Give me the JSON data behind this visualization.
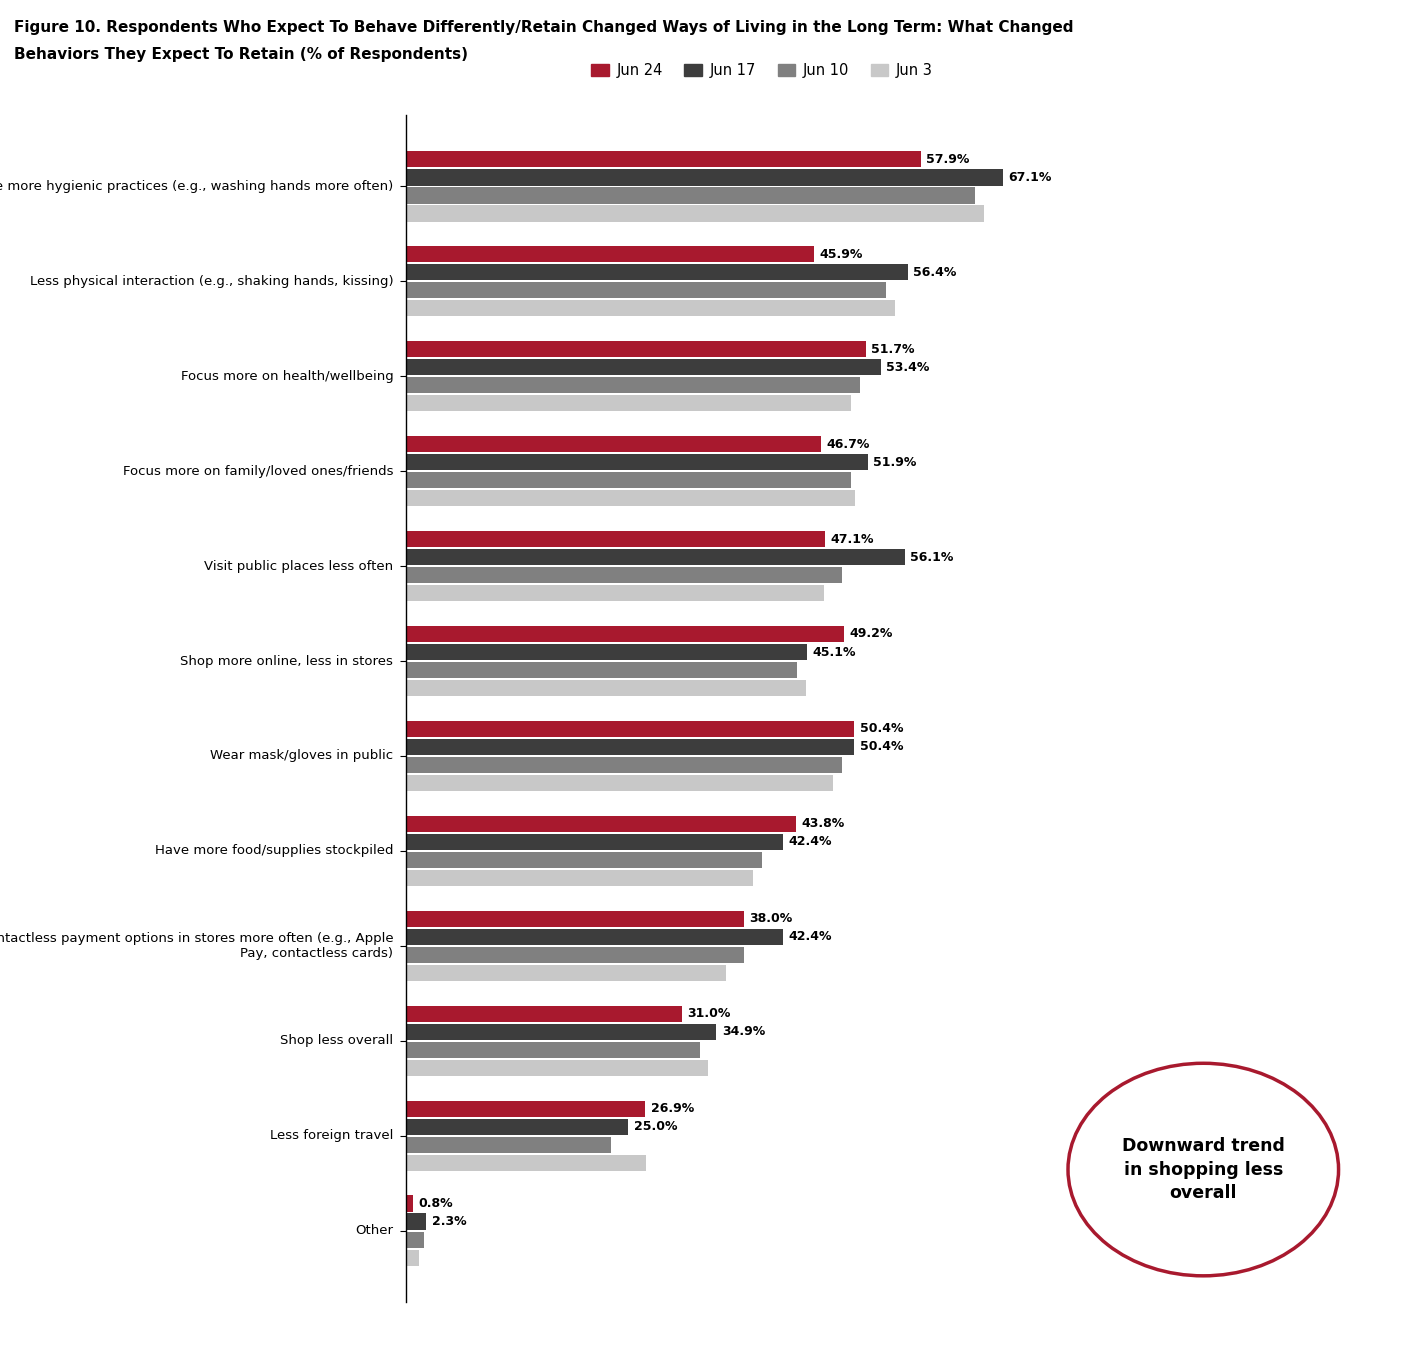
{
  "title_line1": "Figure 10. Respondents Who Expect To Behave Differently/Retain Changed Ways of Living in the Long Term: What Changed",
  "title_line2": "Behaviors They Expect To Retain (% of Respondents)",
  "categories": [
    "Have more hygienic practices (e.g., washing hands more often)",
    "Less physical interaction (e.g., shaking hands, kissing)",
    "Focus more on health/wellbeing",
    "Focus more on family/loved ones/friends",
    "Visit public places less often",
    "Shop more online, less in stores",
    "Wear mask/gloves in public",
    "Have more food/supplies stockpiled",
    "Use contactless payment options in stores more often (e.g., Apple\nPay, contactless cards)",
    "Shop less overall",
    "Less foreign travel",
    "Other"
  ],
  "legend_labels": [
    "Jun 24",
    "Jun 17",
    "Jun 10",
    "Jun 3"
  ],
  "colors": [
    "#A8192E",
    "#3D3D3D",
    "#808080",
    "#C8C8C8"
  ],
  "jun24": [
    57.9,
    45.9,
    51.7,
    46.7,
    47.1,
    49.2,
    50.4,
    43.8,
    38.0,
    31.0,
    26.9,
    0.8
  ],
  "jun17": [
    67.1,
    56.4,
    53.4,
    51.9,
    56.1,
    45.1,
    50.4,
    42.4,
    42.4,
    34.9,
    25.0,
    2.3
  ],
  "jun10": [
    64.0,
    54.0,
    51.0,
    50.0,
    49.0,
    44.0,
    49.0,
    40.0,
    38.0,
    33.0,
    23.0,
    2.0
  ],
  "jun3": [
    65.0,
    55.0,
    50.0,
    50.5,
    47.0,
    45.0,
    48.0,
    39.0,
    36.0,
    34.0,
    27.0,
    1.5
  ],
  "xlim": [
    0,
    80
  ],
  "annotation_text": "Downward trend\nin shopping less\noverall"
}
